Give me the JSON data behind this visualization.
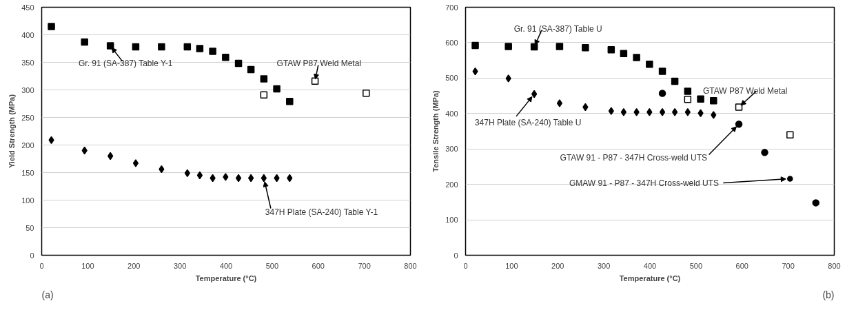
{
  "chart_data": [
    {
      "type": "scatter",
      "xlabel": "Temperature (°C)",
      "ylabel": "Yield Strength (MPa)",
      "xlim": [
        0,
        800
      ],
      "ylim": [
        0,
        450
      ],
      "xticks": [
        0,
        100,
        200,
        300,
        400,
        500,
        600,
        700,
        800
      ],
      "yticks": [
        0,
        50,
        100,
        150,
        200,
        250,
        300,
        350,
        400,
        450
      ],
      "grid": "y",
      "series": [
        {
          "color": "#000000",
          "marker": "square",
          "x": [
            21,
            93,
            149,
            204,
            260,
            316,
            343,
            371,
            399,
            427,
            454,
            482,
            510,
            538
          ],
          "values": [
            415,
            387,
            380,
            378,
            378,
            378,
            375,
            370,
            359,
            348,
            337,
            320,
            302,
            279
          ]
        },
        {
          "color": "#000000",
          "marker": "diamond",
          "x": [
            21,
            93,
            149,
            204,
            260,
            316,
            343,
            371,
            399,
            427,
            454,
            482,
            510,
            538
          ],
          "values": [
            209,
            190,
            180,
            167,
            156,
            149,
            145,
            140,
            142,
            140,
            140,
            140,
            140,
            140
          ]
        },
        {
          "color": "#ffffff",
          "marker": "square",
          "x": [
            482,
            593,
            704
          ],
          "values": [
            291,
            316,
            294
          ]
        }
      ],
      "annotations": [
        {
          "text": "Gr. 91 (SA-387) Table Y-1",
          "x": 149,
          "y": 380
        },
        {
          "text": "GTAW P87 Weld Metal",
          "x": 593,
          "y": 316
        },
        {
          "text": "347H Plate (SA-240) Table Y-1",
          "x": 482,
          "y": 140
        },
        "(a)"
      ]
    },
    {
      "type": "scatter",
      "xlabel": "Temperature (°C)",
      "ylabel": "Tensile Strength (MPa)",
      "xlim": [
        0,
        800
      ],
      "ylim": [
        0,
        700
      ],
      "xticks": [
        0,
        100,
        200,
        300,
        400,
        500,
        600,
        700,
        800
      ],
      "yticks": [
        0,
        100,
        200,
        300,
        400,
        500,
        600,
        700
      ],
      "grid": "y",
      "series": [
        {
          "color": "#000000",
          "marker": "square",
          "x": [
            21,
            93,
            149,
            204,
            260,
            316,
            343,
            371,
            399,
            427,
            454,
            482,
            510,
            538
          ],
          "values": [
            592,
            589,
            588,
            589,
            586,
            580,
            569,
            558,
            539,
            519,
            491,
            463,
            441,
            436
          ]
        },
        {
          "color": "#000000",
          "marker": "diamond",
          "x": [
            21,
            93,
            149,
            204,
            260,
            316,
            343,
            371,
            399,
            427,
            454,
            482,
            510,
            538
          ],
          "values": [
            519,
            499,
            455,
            429,
            418,
            407,
            404,
            404,
            404,
            404,
            404,
            404,
            401,
            396
          ]
        },
        {
          "color": "#ffffff",
          "marker": "square",
          "x": [
            482,
            593,
            704
          ],
          "values": [
            440,
            418,
            340
          ]
        },
        {
          "color": "#000000",
          "marker": "circle",
          "x": [
            427,
            593,
            649,
            760
          ],
          "values": [
            457,
            370,
            290,
            148
          ]
        },
        {
          "color": "#000000",
          "marker": "circle",
          "x": [
            704
          ],
          "values": [
            216
          ]
        }
      ],
      "annotations": [
        {
          "text": "Gr. 91 (SA-387) Table U",
          "x": 149,
          "y": 588
        },
        {
          "text": "347H Plate (SA-240) Table U",
          "x": 149,
          "y": 455
        },
        {
          "text": "GTAW P87 Weld Metal",
          "x": 593,
          "y": 418
        },
        {
          "text": "GTAW 91 - P87 - 347H Cross-weld UTS",
          "x": 593,
          "y": 370
        },
        {
          "text": "GMAW 91 - P87 - 347H Cross-weld UTS",
          "x": 704,
          "y": 216
        },
        "(b)"
      ]
    }
  ]
}
